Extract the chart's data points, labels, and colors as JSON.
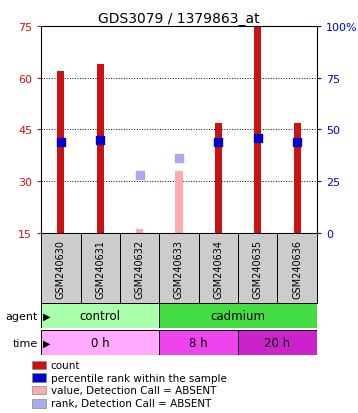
{
  "title": "GDS3079 / 1379863_at",
  "samples": [
    "GSM240630",
    "GSM240631",
    "GSM240632",
    "GSM240633",
    "GSM240634",
    "GSM240635",
    "GSM240636"
  ],
  "count_values": [
    62,
    64,
    null,
    null,
    47,
    75,
    47
  ],
  "count_absent_values": [
    null,
    null,
    16,
    33,
    null,
    null,
    null
  ],
  "percentile_values": [
    44,
    45,
    null,
    null,
    44,
    46,
    44
  ],
  "percentile_absent_values": [
    null,
    null,
    28,
    36,
    null,
    null,
    null
  ],
  "ylim_left": [
    15,
    75
  ],
  "ylim_right": [
    0,
    100
  ],
  "yticks_left": [
    15,
    30,
    45,
    60,
    75
  ],
  "yticks_right": [
    0,
    25,
    50,
    75,
    100
  ],
  "ytick_labels_right": [
    "0",
    "25",
    "50",
    "75",
    "100%"
  ],
  "bar_color": "#cc1111",
  "bar_absent_color": "#ffaaaa",
  "dot_color": "#0000cc",
  "dot_absent_color": "#aaaaee",
  "sample_box_color": "#cccccc",
  "agent_groups": [
    {
      "label": "control",
      "start": 0,
      "end": 3,
      "color": "#aaffaa"
    },
    {
      "label": "cadmium",
      "start": 3,
      "end": 7,
      "color": "#44dd44"
    }
  ],
  "time_groups": [
    {
      "label": "0 h",
      "start": 0,
      "end": 3,
      "color": "#ffaaff"
    },
    {
      "label": "8 h",
      "start": 3,
      "end": 5,
      "color": "#ee44ee"
    },
    {
      "label": "20 h",
      "start": 5,
      "end": 7,
      "color": "#cc22cc"
    }
  ],
  "legend_items": [
    {
      "color": "#cc1111",
      "label": "count"
    },
    {
      "color": "#0000cc",
      "label": "percentile rank within the sample"
    },
    {
      "color": "#ffaaaa",
      "label": "value, Detection Call = ABSENT"
    },
    {
      "color": "#aaaaee",
      "label": "rank, Detection Call = ABSENT"
    }
  ],
  "bar_width": 0.18,
  "dot_size": 30
}
